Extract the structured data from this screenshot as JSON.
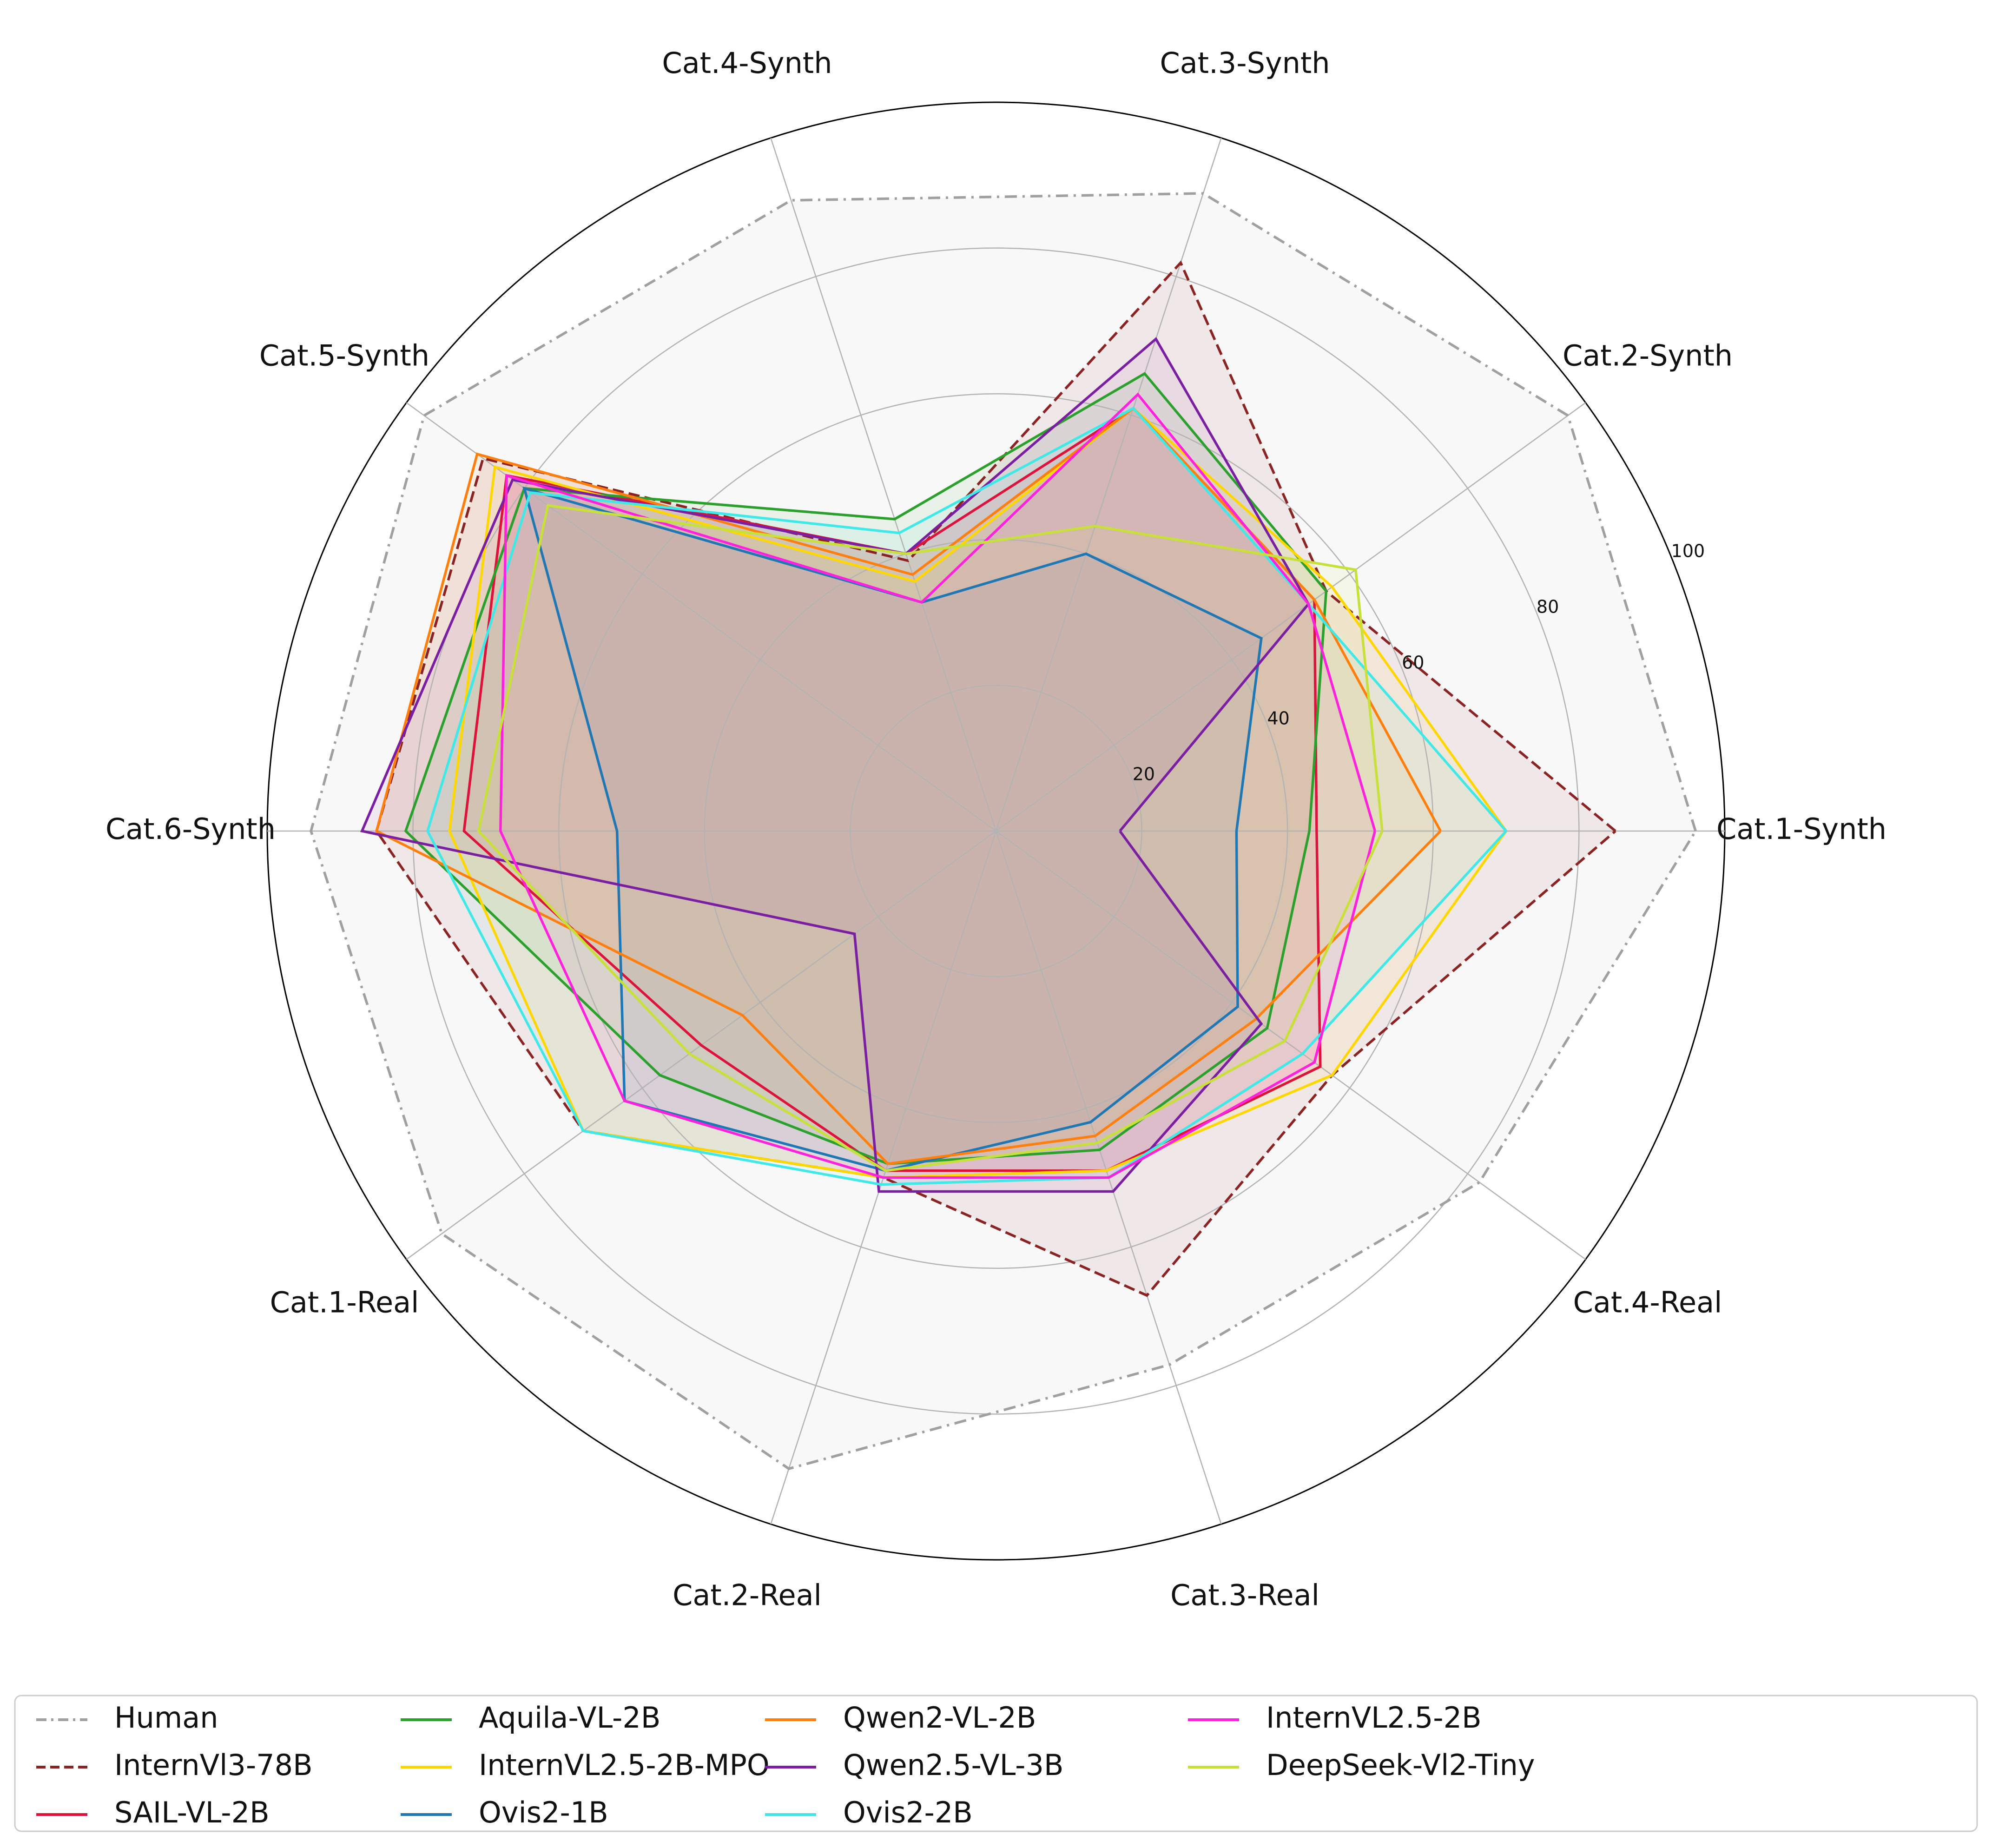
{
  "chart_data": {
    "type": "radar",
    "categories": [
      "Cat.1-Synth",
      "Cat.2-Synth",
      "Cat.3-Synth",
      "Cat.4-Synth",
      "Cat.5-Synth",
      "Cat.6-Synth",
      "Cat.1-Real",
      "Cat.2-Real",
      "Cat.3-Real",
      "Cat.4-Real"
    ],
    "rlim": [
      0,
      100
    ],
    "rticks": [
      20,
      40,
      60,
      80,
      100
    ],
    "grid": true,
    "legend_position": "bottom",
    "series": [
      {
        "name": "Human",
        "color": "#a0a0a0",
        "dash": "dashdot",
        "values": [
          96,
          97,
          92,
          91,
          97,
          94,
          94,
          92,
          77,
          82
        ]
      },
      {
        "name": "InternVl3-78B",
        "color": "#8b2323",
        "dash": "dashed",
        "values": [
          85,
          56,
          82,
          39,
          87,
          85,
          70,
          50,
          67,
          57
        ]
      },
      {
        "name": "SAIL-VL-2B",
        "color": "#dc143c",
        "dash": "solid",
        "values": [
          44,
          54,
          61,
          40,
          83,
          73,
          50,
          49,
          49,
          55
        ]
      },
      {
        "name": "Aquila-VL-2B",
        "color": "#2ca02c",
        "dash": "solid",
        "values": [
          43,
          56,
          66,
          45,
          80,
          81,
          57,
          48,
          46,
          46
        ]
      },
      {
        "name": "InternVL2.5-2B-MPO",
        "color": "#ffd700",
        "dash": "solid",
        "values": [
          70,
          57,
          61,
          36,
          85,
          75,
          70,
          50,
          49,
          57
        ]
      },
      {
        "name": "Ovis2-1B",
        "color": "#1f77b4",
        "dash": "solid",
        "values": [
          33,
          45,
          40,
          33,
          80,
          52,
          63,
          49,
          42,
          41
        ]
      },
      {
        "name": "Qwen2-VL-2B",
        "color": "#ff7f0e",
        "dash": "solid",
        "values": [
          61,
          54,
          61,
          37,
          88,
          85,
          43,
          48,
          44,
          44
        ]
      },
      {
        "name": "Qwen2.5-VL-3B",
        "color": "#7b1fa2",
        "dash": "solid",
        "values": [
          17,
          53,
          71,
          40,
          82,
          87,
          24,
          52,
          52,
          45
        ]
      },
      {
        "name": "Ovis2-2B",
        "color": "#40e8e8",
        "dash": "solid",
        "values": [
          70,
          53,
          61,
          43,
          79,
          78,
          70,
          51,
          50,
          52
        ]
      },
      {
        "name": "InternVL2.5-2B",
        "color": "#ff22dd",
        "dash": "solid",
        "values": [
          52,
          53,
          63,
          33,
          83,
          68,
          63,
          50,
          50,
          54
        ]
      },
      {
        "name": "DeepSeek-Vl2-Tiny",
        "color": "#c7e03a",
        "dash": "solid",
        "values": [
          53,
          61,
          44,
          40,
          76,
          71,
          52,
          49,
          45,
          49
        ]
      }
    ]
  }
}
